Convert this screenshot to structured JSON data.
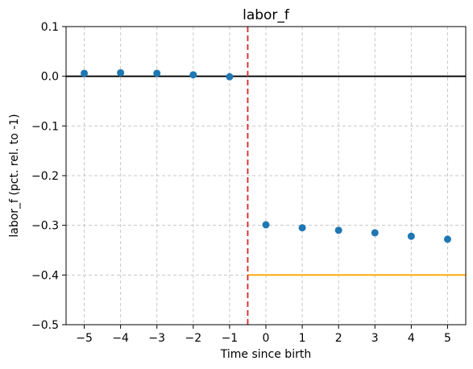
{
  "chart_data": {
    "type": "scatter",
    "title": "labor_f",
    "xlabel": "Time since birth",
    "ylabel": "labor_f (pct. rel. to -1)",
    "xlim": [
      -5.5,
      5.5
    ],
    "ylim": [
      -0.5,
      0.1
    ],
    "grid": true,
    "x_ticks": [
      -5,
      -4,
      -3,
      -2,
      -1,
      0,
      1,
      2,
      3,
      4,
      5
    ],
    "x_tick_labels": [
      "−5",
      "−4",
      "−3",
      "−2",
      "−1",
      "0",
      "1",
      "2",
      "3",
      "4",
      "5"
    ],
    "y_ticks": [
      0.1,
      0.0,
      -0.1,
      -0.2,
      -0.3,
      -0.4,
      -0.5
    ],
    "y_tick_labels": [
      "0.1",
      "0.0",
      "−0.1",
      "−0.2",
      "−0.3",
      "−0.4",
      "−0.5"
    ],
    "x": [
      -5,
      -4,
      -3,
      -2,
      -1,
      0,
      1,
      2,
      3,
      4,
      5
    ],
    "y": [
      0.006,
      0.007,
      0.006,
      0.003,
      -0.001,
      -0.299,
      -0.305,
      -0.31,
      -0.315,
      -0.322,
      -0.328
    ],
    "reference_lines": {
      "zero_line": {
        "y": 0.0,
        "color": "#000000"
      },
      "event_line": {
        "x": -0.5,
        "color": "#d62728"
      },
      "post_line": {
        "y": -0.4,
        "x_from": -0.5,
        "x_to": 5.5,
        "color": "#ffa500"
      }
    },
    "colors": {
      "points": "#1f77b4",
      "grid": "#c8c8c8"
    }
  }
}
